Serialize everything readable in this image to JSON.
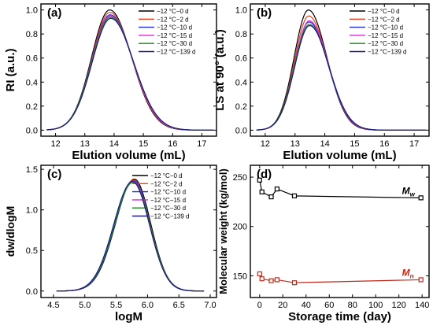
{
  "chart_data": [
    {
      "type": "line",
      "label": "(a)",
      "xlabel": "Elution volume (mL)",
      "ylabel": "RI (a.u.)",
      "xlim": [
        11.5,
        17.5
      ],
      "ylim": [
        -0.05,
        1.05
      ],
      "xticks": [
        12,
        13,
        14,
        15,
        16,
        17
      ],
      "yticks": [
        0.0,
        0.2,
        0.4,
        0.6,
        0.8,
        1.0
      ],
      "xtick_labels": [
        "12",
        "13",
        "14",
        "15",
        "16",
        "17"
      ],
      "ytick_labels": [
        "0.0",
        "0.2",
        "0.4",
        "0.6",
        "0.8",
        "1.0"
      ],
      "x_start": 11.7,
      "x_end": 17.4,
      "legend_position": "top-right",
      "series": [
        {
          "name": "−12 °C−0 d",
          "color": "#000000",
          "peak_x": 13.85,
          "peak_y": 1.0,
          "width_left": 0.62,
          "width_right": 0.75
        },
        {
          "name": "−12 °C−2 d",
          "color": "#e8421c",
          "peak_x": 13.86,
          "peak_y": 0.98,
          "width_left": 0.62,
          "width_right": 0.76
        },
        {
          "name": "−12 °C−10 d",
          "color": "#1f2bd6",
          "peak_x": 13.87,
          "peak_y": 0.96,
          "width_left": 0.63,
          "width_right": 0.77
        },
        {
          "name": "−12 °C−15 d",
          "color": "#d62bd6",
          "peak_x": 13.87,
          "peak_y": 0.95,
          "width_left": 0.63,
          "width_right": 0.77
        },
        {
          "name": "−12 °C−30 d",
          "color": "#1a8a1a",
          "peak_x": 13.88,
          "peak_y": 0.94,
          "width_left": 0.64,
          "width_right": 0.78
        },
        {
          "name": "−12 °C−139 d",
          "color": "#1a1a80",
          "peak_x": 13.89,
          "peak_y": 0.93,
          "width_left": 0.64,
          "width_right": 0.78
        }
      ]
    },
    {
      "type": "line",
      "label": "(b)",
      "xlabel": "Elution volume (mL)",
      "ylabel": "LS at 90° (a.u.)",
      "xlim": [
        11.5,
        17.5
      ],
      "ylim": [
        -0.05,
        1.05
      ],
      "xticks": [
        12,
        13,
        14,
        15,
        16,
        17
      ],
      "yticks": [
        0.0,
        0.2,
        0.4,
        0.6,
        0.8,
        1.0
      ],
      "xtick_labels": [
        "12",
        "13",
        "14",
        "15",
        "16",
        "17"
      ],
      "ytick_labels": [
        "0.0",
        "0.2",
        "0.4",
        "0.6",
        "0.8",
        "1.0"
      ],
      "x_start": 11.7,
      "x_end": 17.4,
      "legend_position": "top-right",
      "series": [
        {
          "name": "−12 °C−0 d",
          "color": "#000000",
          "peak_x": 13.45,
          "peak_y": 1.0,
          "width_left": 0.48,
          "width_right": 0.62
        },
        {
          "name": "−12 °C−2 d",
          "color": "#e8421c",
          "peak_x": 13.46,
          "peak_y": 0.95,
          "width_left": 0.48,
          "width_right": 0.63
        },
        {
          "name": "−12 °C−10 d",
          "color": "#1f2bd6",
          "peak_x": 13.47,
          "peak_y": 0.9,
          "width_left": 0.49,
          "width_right": 0.64
        },
        {
          "name": "−12 °C−15 d",
          "color": "#d62bd6",
          "peak_x": 13.48,
          "peak_y": 0.91,
          "width_left": 0.49,
          "width_right": 0.64
        },
        {
          "name": "−12 °C−30 d",
          "color": "#1a8a1a",
          "peak_x": 13.48,
          "peak_y": 0.88,
          "width_left": 0.5,
          "width_right": 0.65
        },
        {
          "name": "−12 °C−139 d",
          "color": "#1a1a80",
          "peak_x": 13.49,
          "peak_y": 0.87,
          "width_left": 0.5,
          "width_right": 0.65
        }
      ]
    },
    {
      "type": "line",
      "label": "(c)",
      "xlabel": "logM",
      "ylabel": "dw/dlogM",
      "xlim": [
        4.3,
        7.1
      ],
      "ylim": [
        -0.08,
        1.55
      ],
      "xticks": [
        4.5,
        5.0,
        5.5,
        6.0,
        6.5,
        7.0
      ],
      "yticks": [
        0.0,
        0.5,
        1.0,
        1.5
      ],
      "xtick_labels": [
        "4.5",
        "5.0",
        "5.5",
        "6.0",
        "6.5",
        "7.0"
      ],
      "ytick_labels": [
        "0.0",
        "0.5",
        "1.0",
        "1.5"
      ],
      "x_start": 4.55,
      "x_end": 6.9,
      "legend_position": "top-right",
      "series": [
        {
          "name": "−12 °C−0 d",
          "color": "#000000",
          "peak_x": 5.79,
          "peak_y": 1.38,
          "width_left": 0.3,
          "width_right": 0.26
        },
        {
          "name": "−12 °C−2 d",
          "color": "#e8421c",
          "peak_x": 5.78,
          "peak_y": 1.37,
          "width_left": 0.3,
          "width_right": 0.26
        },
        {
          "name": "−12 °C−10 d",
          "color": "#1f2bd6",
          "peak_x": 5.78,
          "peak_y": 1.36,
          "width_left": 0.3,
          "width_right": 0.26
        },
        {
          "name": "−12 °C−15 d",
          "color": "#d62bd6",
          "peak_x": 5.77,
          "peak_y": 1.35,
          "width_left": 0.3,
          "width_right": 0.27
        },
        {
          "name": "−12 °C−30 d",
          "color": "#1a8a1a",
          "peak_x": 5.77,
          "peak_y": 1.34,
          "width_left": 0.3,
          "width_right": 0.27
        },
        {
          "name": "−12 °C−139 d",
          "color": "#1a1a80",
          "peak_x": 5.76,
          "peak_y": 1.35,
          "width_left": 0.3,
          "width_right": 0.27
        }
      ]
    },
    {
      "type": "scatter",
      "label": "(d)",
      "xlabel": "Storage time (day)",
      "ylabel": "Molecular weight (kg/mol)",
      "xlim": [
        -8,
        146
      ],
      "ylim": [
        128,
        262
      ],
      "xticks": [
        0,
        20,
        40,
        60,
        80,
        100,
        120,
        140
      ],
      "yticks": [
        150,
        200,
        250
      ],
      "xtick_labels": [
        "0",
        "20",
        "40",
        "60",
        "80",
        "100",
        "120",
        "140"
      ],
      "ytick_labels": [
        "150",
        "200",
        "250"
      ],
      "series": [
        {
          "name": "Mw",
          "label_main": "M",
          "label_sub": "w",
          "color": "#000000",
          "marker_edge": "#000000",
          "x": [
            0,
            2,
            10,
            15,
            30,
            139
          ],
          "y": [
            247,
            235,
            230,
            238,
            231,
            229
          ]
        },
        {
          "name": "Mn",
          "label_main": "M",
          "label_sub": "n",
          "color": "#c0281a",
          "marker_edge": "#c0281a",
          "x": [
            0,
            2,
            10,
            15,
            30,
            139
          ],
          "y": [
            152,
            147,
            145,
            146,
            143,
            146
          ]
        }
      ]
    }
  ]
}
